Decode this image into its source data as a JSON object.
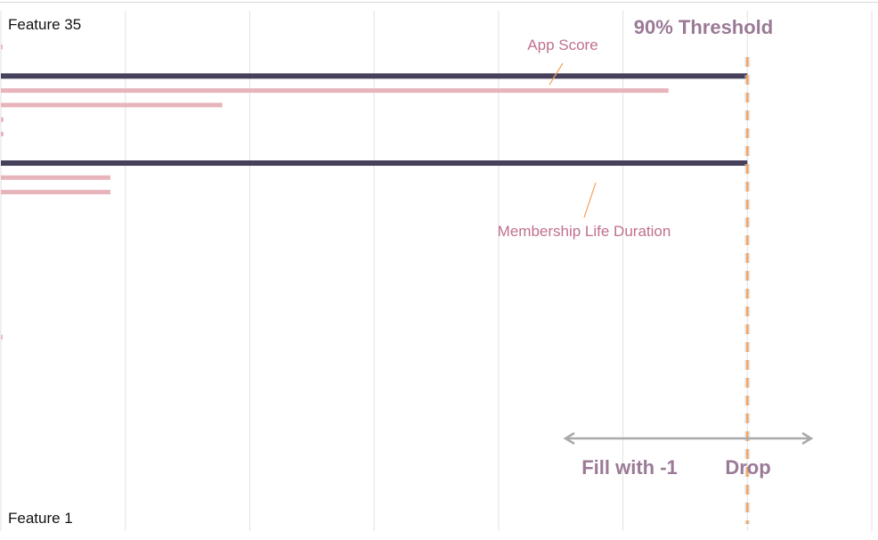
{
  "chart_data": {
    "type": "bar",
    "orientation": "horizontal",
    "label_top": "Feature 35",
    "label_bottom": "Feature 1",
    "feature_count": 35,
    "xlim": [
      0,
      1.05
    ],
    "grid": true,
    "threshold": {
      "value": 0.9,
      "label": "90% Threshold",
      "color": "#F4A460"
    },
    "zones": {
      "left_label": "Fill with -1",
      "right_label": "Drop"
    },
    "callouts": {
      "top": "App Score",
      "bottom": "Membership Life Duration"
    },
    "colors": {
      "highlight": "#46405A",
      "normal": "#E8B4BC",
      "label_color": "#C07090",
      "zone_color": "#9A7A96",
      "arrow_color": "#AAAAAA",
      "grid_color": "#E2E2E2"
    },
    "bars": [
      {
        "feature": 35,
        "value": 0
      },
      {
        "feature": 34,
        "value": 0.002
      },
      {
        "feature": 33,
        "value": 0
      },
      {
        "feature": 32,
        "value": 0.9
      },
      {
        "feature": 31,
        "value": 0.805
      },
      {
        "feature": 30,
        "value": 0.267
      },
      {
        "feature": 29,
        "value": 0.003
      },
      {
        "feature": 28,
        "value": 0.003
      },
      {
        "feature": 27,
        "value": 0
      },
      {
        "feature": 26,
        "value": 0.9
      },
      {
        "feature": 25,
        "value": 0.132
      },
      {
        "feature": 24,
        "value": 0.132
      },
      {
        "feature": 23,
        "value": 0
      },
      {
        "feature": 22,
        "value": 0
      },
      {
        "feature": 21,
        "value": 0
      },
      {
        "feature": 20,
        "value": 0
      },
      {
        "feature": 19,
        "value": 0
      },
      {
        "feature": 18,
        "value": 0
      },
      {
        "feature": 17,
        "value": 0
      },
      {
        "feature": 16,
        "value": 0
      },
      {
        "feature": 15,
        "value": 0
      },
      {
        "feature": 14,
        "value": 0.002
      },
      {
        "feature": 13,
        "value": 0
      },
      {
        "feature": 12,
        "value": 0
      },
      {
        "feature": 11,
        "value": 0
      },
      {
        "feature": 10,
        "value": 0
      },
      {
        "feature": 9,
        "value": 0
      },
      {
        "feature": 8,
        "value": 0
      },
      {
        "feature": 7,
        "value": 0
      },
      {
        "feature": 6,
        "value": 0
      },
      {
        "feature": 5,
        "value": 0
      },
      {
        "feature": 4,
        "value": 0
      },
      {
        "feature": 3,
        "value": 0
      },
      {
        "feature": 2,
        "value": 0
      },
      {
        "feature": 1,
        "value": 0
      }
    ],
    "highlighted_features": [
      32,
      26
    ]
  }
}
